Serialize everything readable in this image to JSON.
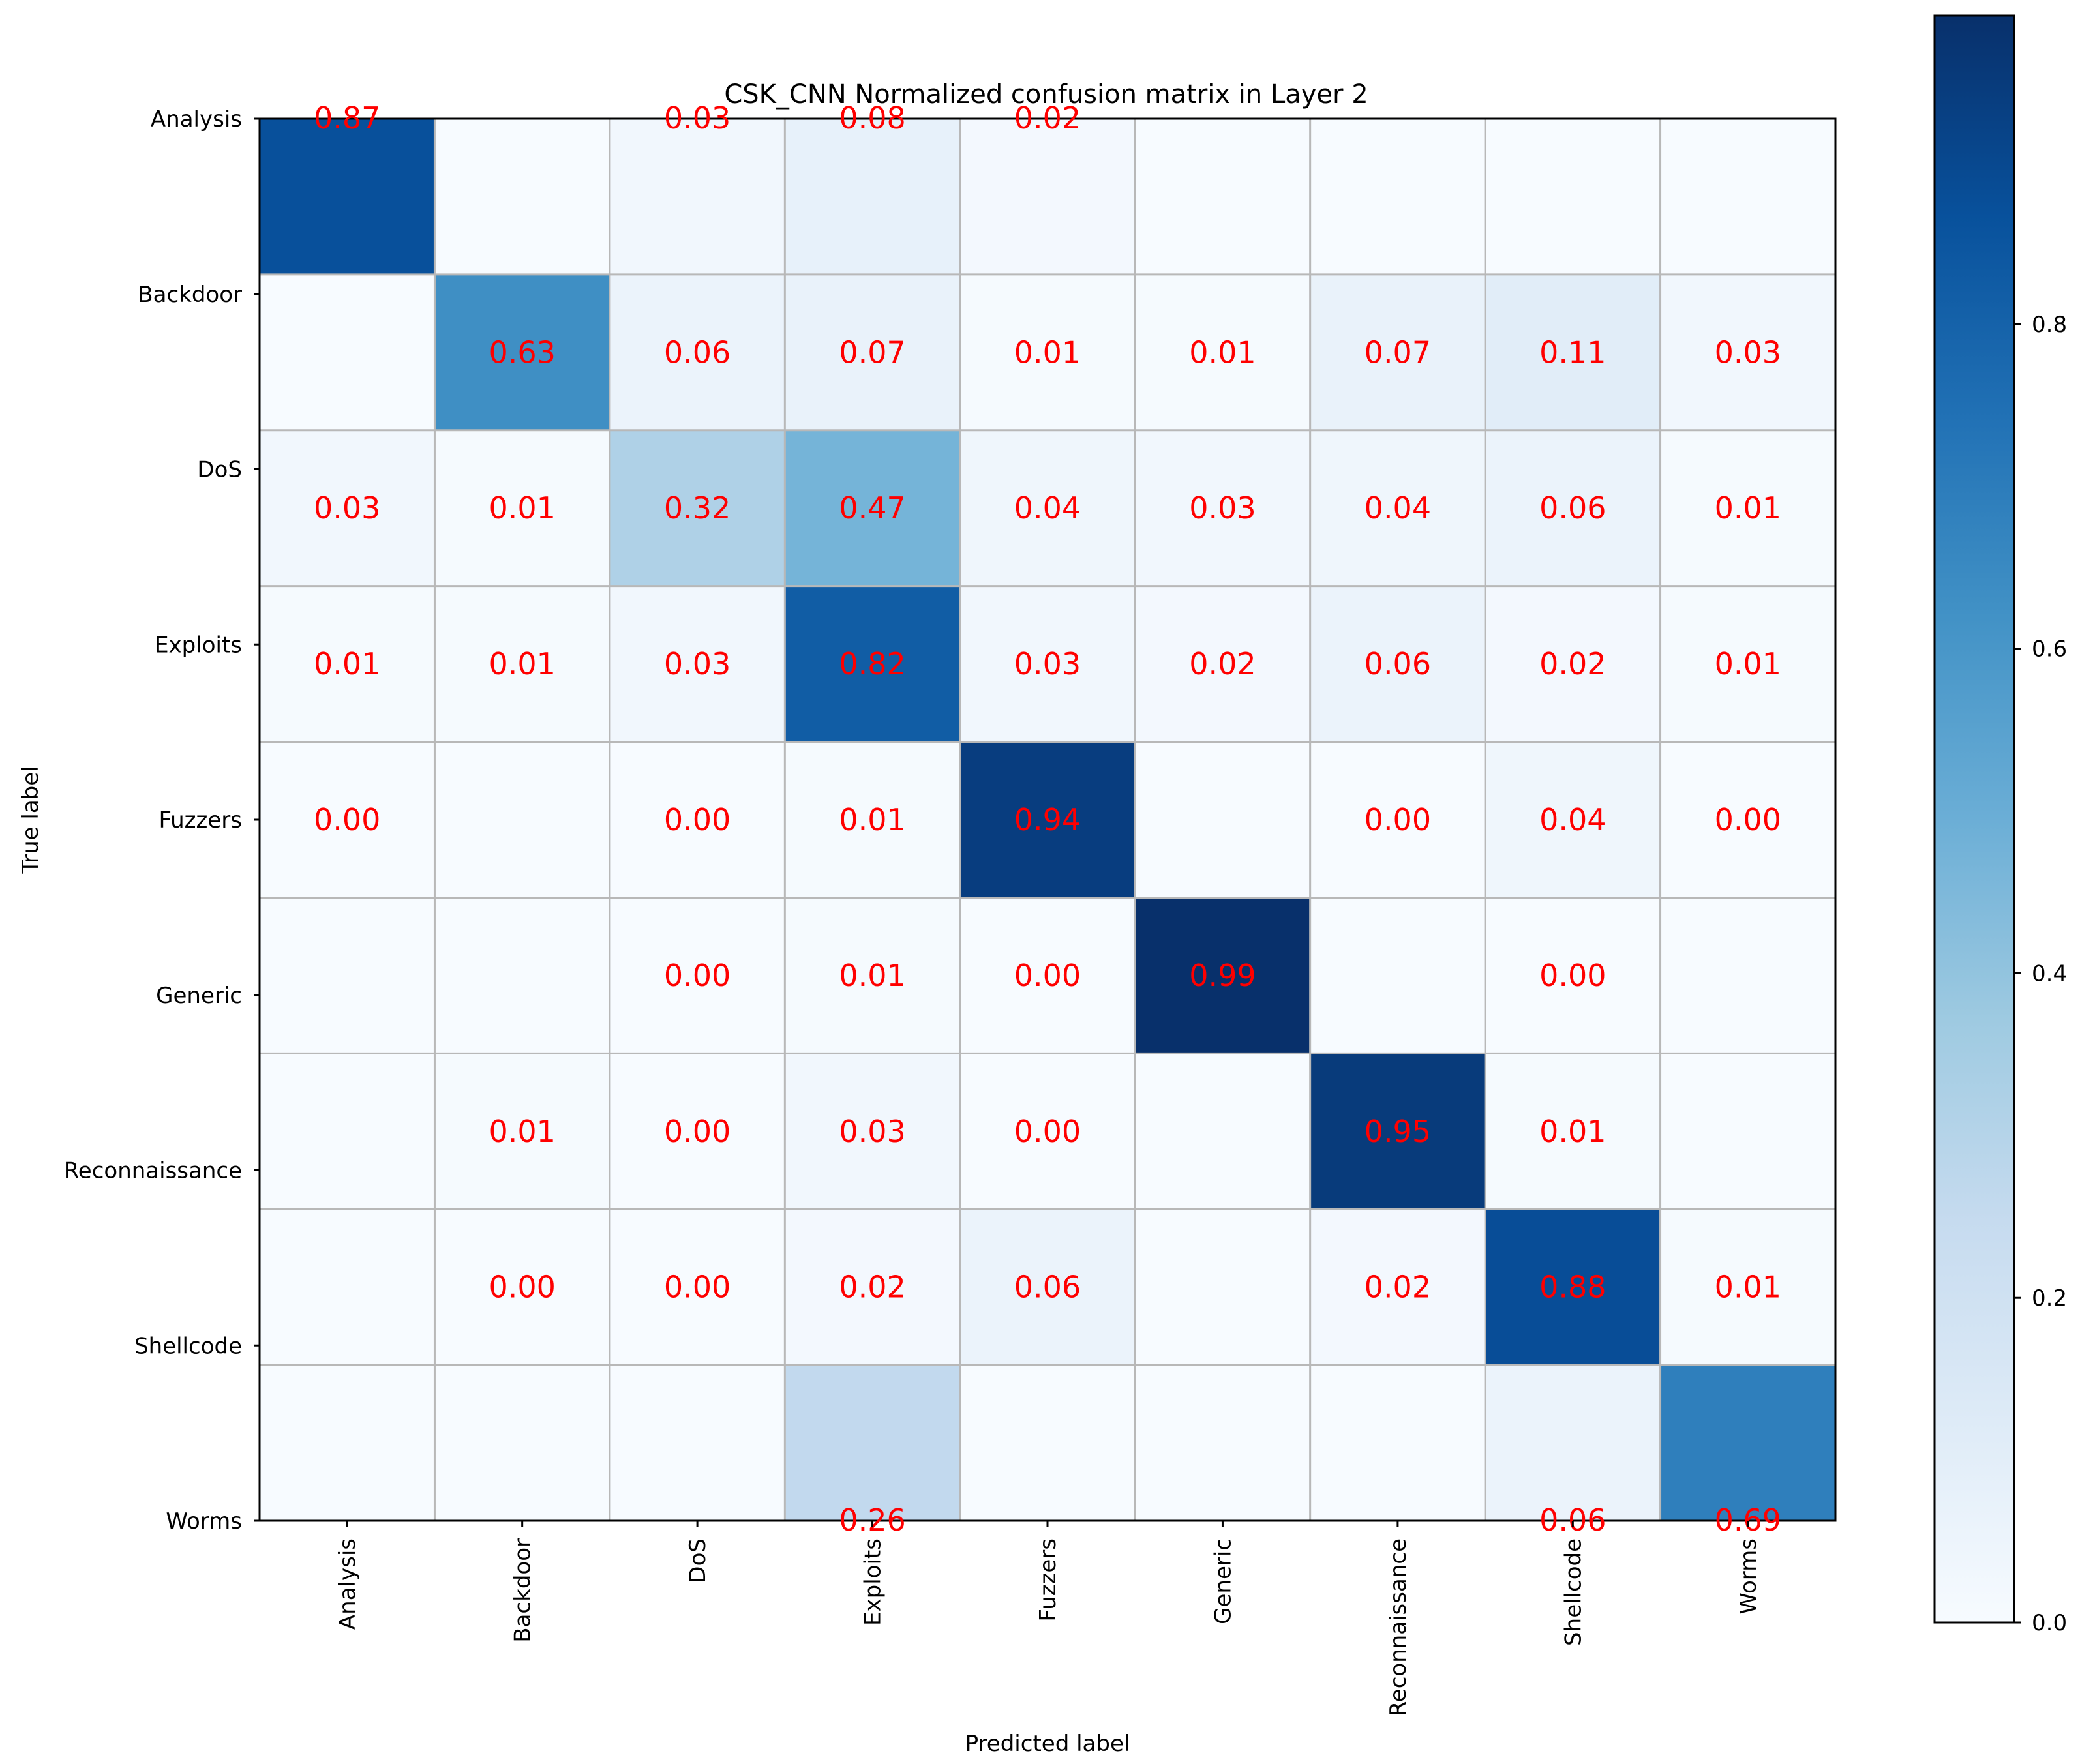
{
  "chart_data": {
    "type": "heatmap",
    "title": "CSK_CNN Normalized confusion matrix in Layer 2",
    "xlabel": "Predicted label",
    "ylabel": "True label",
    "categories": [
      "Analysis",
      "Backdoor",
      "DoS",
      "Exploits",
      "Fuzzers",
      "Generic",
      "Reconnaissance",
      "Shellcode",
      "Worms"
    ],
    "matrix": [
      [
        0.87,
        null,
        0.03,
        0.08,
        0.02,
        null,
        null,
        null,
        null
      ],
      [
        null,
        0.63,
        0.06,
        0.07,
        0.01,
        0.01,
        0.07,
        0.11,
        0.03
      ],
      [
        0.03,
        0.01,
        0.32,
        0.47,
        0.04,
        0.03,
        0.04,
        0.06,
        0.01
      ],
      [
        0.01,
        0.01,
        0.03,
        0.82,
        0.03,
        0.02,
        0.06,
        0.02,
        0.01
      ],
      [
        0.0,
        null,
        0.0,
        0.01,
        0.94,
        null,
        0.0,
        0.04,
        0.0
      ],
      [
        null,
        null,
        0.0,
        0.01,
        0.0,
        0.99,
        null,
        0.0,
        null
      ],
      [
        null,
        0.01,
        0.0,
        0.03,
        0.0,
        null,
        0.95,
        0.01,
        null
      ],
      [
        null,
        0.0,
        0.0,
        0.02,
        0.06,
        null,
        0.02,
        0.88,
        0.01
      ],
      [
        null,
        null,
        null,
        0.26,
        null,
        null,
        null,
        0.06,
        0.69
      ]
    ],
    "colorbar": {
      "range": [
        0.0,
        0.99
      ],
      "ticks": [
        0.0,
        0.2,
        0.4,
        0.6,
        0.8
      ],
      "tick_labels": [
        "0.0",
        "0.2",
        "0.4",
        "0.6",
        "0.8"
      ]
    },
    "colormap": "Blues",
    "annotation_color": "#ff0000",
    "grid": true
  }
}
